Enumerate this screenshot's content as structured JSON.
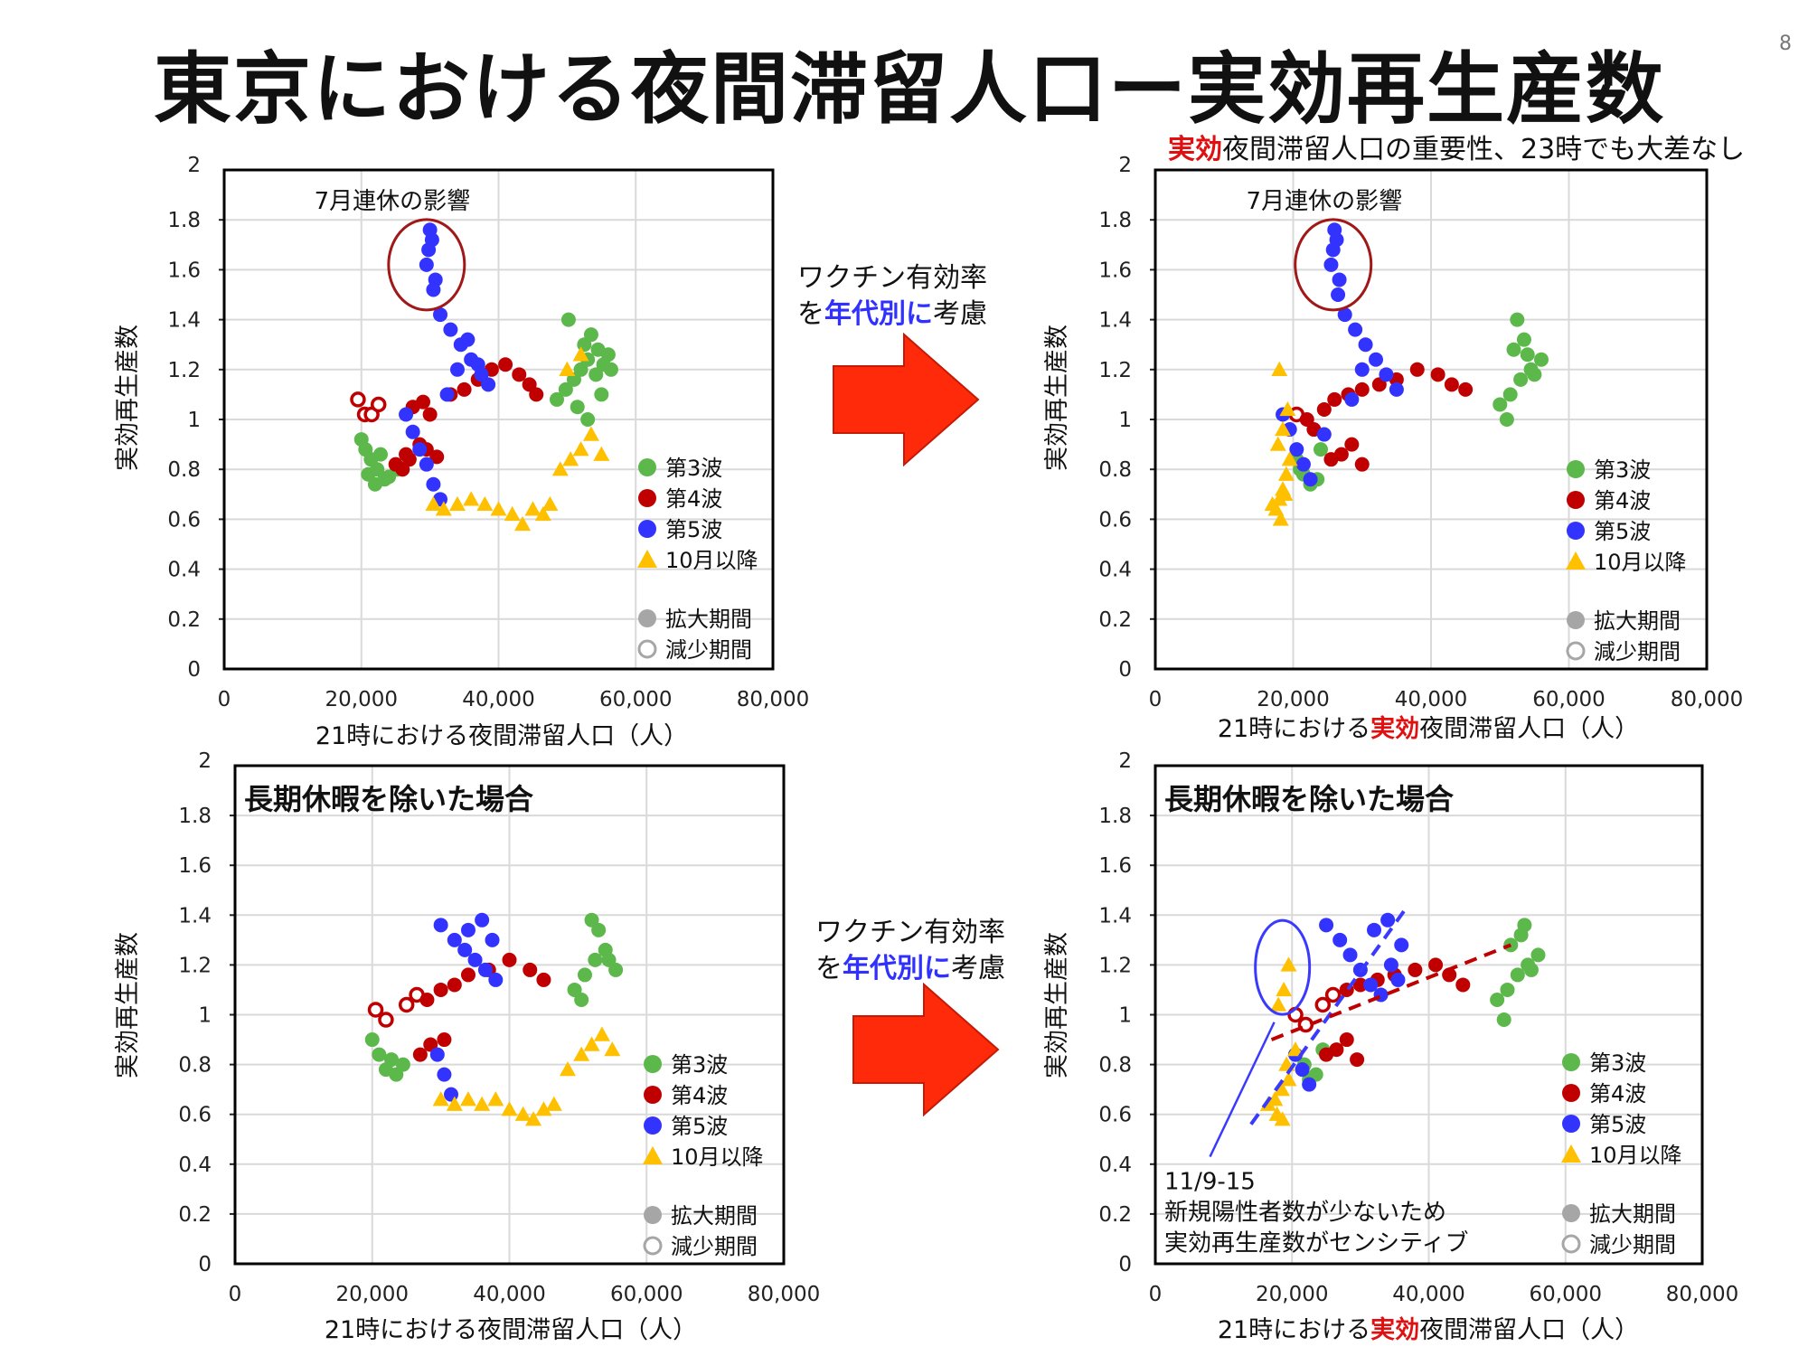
{
  "page": {
    "title": "東京における夜間滞留人口ー実効再生産数",
    "page_number": "8",
    "note_prefix": "実効",
    "note_rest": "夜間滞留人口の重要性、23時でも大差なし"
  },
  "arrows": [
    {
      "line1": "ワクチン有効率",
      "line2_pre": "を",
      "line2_hl": "年代別に",
      "line2_post": "考慮"
    },
    {
      "line1": "ワクチン有効率",
      "line2_pre": "を",
      "line2_hl": "年代別に",
      "line2_post": "考慮"
    }
  ],
  "colors": {
    "wave3": "#5cb84a",
    "wave4": "#c00000",
    "wave5": "#3333ff",
    "oct": "#ffc000",
    "legend_gray": "#a6a6a6",
    "callout": "#a01818",
    "arrow": "#ff2a0a"
  },
  "legend": {
    "wave3": "第3波",
    "wave4": "第4波",
    "wave5": "第5波",
    "oct": "10月以降",
    "expand": "拡大期間",
    "shrink": "減少期間"
  },
  "axes": {
    "ylabel": "実効再生産数",
    "xlabel": "21時における夜間滞留人口（人）",
    "xlabel_pre": "21時における",
    "xlabel_hl": "実効",
    "xlabel_post": "夜間滞留人口（人）",
    "xticks": [
      "0",
      "20,000",
      "40,000",
      "60,000",
      "80,000"
    ],
    "yticks": [
      "0",
      "0.2",
      "0.4",
      "0.6",
      "0.8",
      "1",
      "1.2",
      "1.4",
      "1.6",
      "1.8",
      "2"
    ]
  },
  "chart_data": [
    {
      "type": "scatter",
      "panel": "top-left",
      "annotation": "7月連休の影響",
      "xlim": [
        0,
        80000
      ],
      "ylim": [
        0,
        2
      ],
      "series": [
        {
          "name": "第3波",
          "x": [
            20000,
            20600,
            21400,
            22300,
            23400,
            21000,
            22000,
            24000,
            25200,
            22800,
            48500,
            49800,
            51000,
            52000,
            53000,
            54200,
            55300,
            56000,
            52500,
            53500,
            55000,
            51500,
            54500,
            56400,
            50200,
            53000
          ],
          "y": [
            0.92,
            0.88,
            0.84,
            0.8,
            0.76,
            0.78,
            0.74,
            0.77,
            0.8,
            0.86,
            1.08,
            1.12,
            1.16,
            1.2,
            1.24,
            1.18,
            1.22,
            1.26,
            1.3,
            1.34,
            1.1,
            1.05,
            1.28,
            1.2,
            1.4,
            1.0
          ]
        },
        {
          "name": "第4波",
          "x": [
            19500,
            20500,
            21500,
            22500,
            25000,
            26500,
            27500,
            29000,
            30000,
            33000,
            35000,
            37000,
            39000,
            41000,
            43000,
            44500,
            45500,
            26000,
            27000,
            28500,
            29500,
            31000
          ],
          "y": [
            1.08,
            1.02,
            1.02,
            1.06,
            0.82,
            0.86,
            1.05,
            1.07,
            1.02,
            1.1,
            1.12,
            1.16,
            1.2,
            1.22,
            1.18,
            1.14,
            1.1,
            0.8,
            0.84,
            0.9,
            0.88,
            0.85
          ]
        },
        {
          "name": "第5波",
          "x": [
            30000,
            30300,
            29800,
            29500,
            30800,
            30500,
            31500,
            33000,
            34500,
            36000,
            37500,
            38500,
            32500,
            34000,
            35500,
            37000,
            26500,
            27500,
            28500,
            29500,
            30500,
            31500
          ],
          "y": [
            1.76,
            1.72,
            1.68,
            1.62,
            1.56,
            1.52,
            1.42,
            1.36,
            1.3,
            1.24,
            1.18,
            1.14,
            1.1,
            1.2,
            1.32,
            1.22,
            1.02,
            0.95,
            0.88,
            0.82,
            0.74,
            0.68
          ]
        },
        {
          "name": "10月以降",
          "x": [
            30500,
            32000,
            34000,
            36000,
            38000,
            40000,
            42000,
            43500,
            45000,
            46500,
            47500,
            49000,
            50500,
            52000,
            53500,
            55000,
            50000,
            52000
          ],
          "y": [
            0.66,
            0.64,
            0.66,
            0.68,
            0.66,
            0.64,
            0.62,
            0.58,
            0.64,
            0.62,
            0.66,
            0.8,
            0.84,
            0.88,
            0.94,
            0.86,
            1.2,
            1.26
          ]
        }
      ]
    },
    {
      "type": "scatter",
      "panel": "top-right",
      "annotation": "7月連休の影響",
      "xlim": [
        0,
        80000
      ],
      "ylim": [
        0,
        2
      ],
      "series": [
        {
          "name": "第3波",
          "x": [
            20500,
            21500,
            22500,
            23500,
            21000,
            24000,
            50000,
            51500,
            53000,
            54500,
            56000,
            52000,
            53500,
            55000,
            51000,
            54000,
            52500
          ],
          "y": [
            0.84,
            0.78,
            0.74,
            0.76,
            0.8,
            0.88,
            1.06,
            1.1,
            1.16,
            1.2,
            1.24,
            1.28,
            1.32,
            1.18,
            1.0,
            1.26,
            1.4
          ]
        },
        {
          "name": "第4波",
          "x": [
            20500,
            22000,
            23000,
            24500,
            26000,
            28000,
            30000,
            32500,
            35000,
            38000,
            41000,
            43000,
            45000,
            25500,
            27000,
            28500,
            30000
          ],
          "y": [
            1.02,
            1.0,
            0.96,
            1.04,
            1.08,
            1.1,
            1.12,
            1.14,
            1.16,
            1.2,
            1.18,
            1.14,
            1.12,
            0.84,
            0.86,
            0.9,
            0.82
          ]
        },
        {
          "name": "第5波",
          "x": [
            26000,
            26300,
            25800,
            25500,
            26700,
            26500,
            27500,
            29000,
            30500,
            32000,
            33500,
            35000,
            28500,
            30000,
            18500,
            19500,
            20500,
            21500,
            22500,
            24500
          ],
          "y": [
            1.76,
            1.72,
            1.68,
            1.62,
            1.56,
            1.5,
            1.42,
            1.36,
            1.3,
            1.24,
            1.18,
            1.12,
            1.08,
            1.2,
            1.02,
            0.96,
            0.88,
            0.82,
            0.76,
            0.94
          ]
        },
        {
          "name": "10月以降",
          "x": [
            17500,
            18000,
            18500,
            19000,
            17000,
            18200,
            18800,
            19500,
            17800,
            18500,
            19200,
            18000
          ],
          "y": [
            0.64,
            0.68,
            0.72,
            0.78,
            0.66,
            0.6,
            0.7,
            0.84,
            0.9,
            0.96,
            1.04,
            1.2
          ]
        }
      ]
    },
    {
      "type": "scatter",
      "panel": "bottom-left",
      "inset_title": "長期休暇を除いた場合",
      "xlim": [
        0,
        80000
      ],
      "ylim": [
        0,
        2
      ],
      "series": [
        {
          "name": "第3波",
          "x": [
            20000,
            21000,
            22000,
            23500,
            22800,
            24500,
            49500,
            51000,
            52500,
            54000,
            55500,
            53000,
            50500,
            52000,
            54500
          ],
          "y": [
            0.9,
            0.84,
            0.78,
            0.76,
            0.82,
            0.8,
            1.1,
            1.16,
            1.22,
            1.26,
            1.18,
            1.34,
            1.06,
            1.38,
            1.22
          ]
        },
        {
          "name": "第4波",
          "x": [
            20500,
            22000,
            25000,
            26500,
            28000,
            30000,
            32000,
            34000,
            37000,
            40000,
            43000,
            45000,
            27000,
            28500,
            30500
          ],
          "y": [
            1.02,
            0.98,
            1.04,
            1.08,
            1.06,
            1.1,
            1.12,
            1.16,
            1.18,
            1.22,
            1.18,
            1.14,
            0.84,
            0.88,
            0.9
          ]
        },
        {
          "name": "第5波",
          "x": [
            30000,
            32000,
            33500,
            35000,
            36500,
            38000,
            34000,
            36000,
            37500,
            29500,
            30500,
            31500
          ],
          "y": [
            1.36,
            1.3,
            1.26,
            1.22,
            1.18,
            1.14,
            1.34,
            1.38,
            1.3,
            0.84,
            0.76,
            0.68
          ]
        },
        {
          "name": "10月以降",
          "x": [
            30000,
            32000,
            34000,
            36000,
            38000,
            40000,
            42000,
            43500,
            45000,
            46500,
            48500,
            50500,
            52000,
            53500,
            55000
          ],
          "y": [
            0.66,
            0.64,
            0.66,
            0.64,
            0.66,
            0.62,
            0.6,
            0.58,
            0.62,
            0.64,
            0.78,
            0.84,
            0.88,
            0.92,
            0.86
          ]
        }
      ]
    },
    {
      "type": "scatter",
      "panel": "bottom-right",
      "inset_title": "長期休暇を除いた場合",
      "annotation": "11/9-15\n新規陽性者数が少ないため\n実効再生産数がセンシティブ",
      "xlim": [
        0,
        80000
      ],
      "ylim": [
        0,
        2
      ],
      "series": [
        {
          "name": "第3波",
          "x": [
            20500,
            21500,
            22500,
            23500,
            21800,
            24500,
            50000,
            51500,
            53000,
            54500,
            56000,
            52000,
            53500,
            55000,
            51000,
            54000
          ],
          "y": [
            0.84,
            0.78,
            0.74,
            0.76,
            0.8,
            0.86,
            1.06,
            1.1,
            1.16,
            1.2,
            1.24,
            1.28,
            1.32,
            1.18,
            0.98,
            1.36
          ]
        },
        {
          "name": "第4波",
          "x": [
            20500,
            22000,
            24500,
            26000,
            28000,
            30000,
            32500,
            35000,
            38000,
            41000,
            43000,
            45000,
            25000,
            26500,
            28000,
            29500
          ],
          "y": [
            1.0,
            0.96,
            1.04,
            1.08,
            1.1,
            1.12,
            1.14,
            1.16,
            1.18,
            1.2,
            1.16,
            1.12,
            0.84,
            0.86,
            0.9,
            0.82
          ]
        },
        {
          "name": "第5波",
          "x": [
            25000,
            27000,
            28500,
            30000,
            31500,
            33000,
            34500,
            36000,
            32000,
            34000,
            35500,
            20500,
            21500,
            22500
          ],
          "y": [
            1.36,
            1.3,
            1.24,
            1.18,
            1.12,
            1.08,
            1.2,
            1.28,
            1.34,
            1.38,
            1.14,
            0.84,
            0.78,
            0.72
          ]
        },
        {
          "name": "10月以降",
          "x": [
            16500,
            17500,
            18500,
            19500,
            17800,
            18600,
            19200,
            18000,
            18800,
            19500,
            20500
          ],
          "y": [
            0.64,
            0.66,
            0.7,
            0.74,
            0.6,
            0.58,
            0.8,
            1.04,
            1.1,
            1.2,
            0.86
          ]
        }
      ]
    }
  ]
}
